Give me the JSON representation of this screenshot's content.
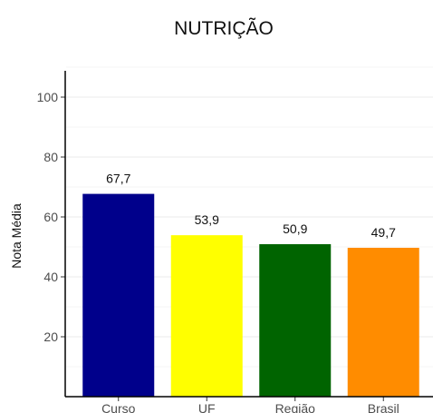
{
  "chart_data": {
    "type": "bar",
    "title": "NUTRIÇÃO",
    "xlabel": "",
    "ylabel": "Nota Média",
    "categories": [
      "Curso",
      "UF",
      "Região",
      "Brasil"
    ],
    "values": [
      67.7,
      53.9,
      50.9,
      49.7
    ],
    "value_labels": [
      "67,7",
      "53,9",
      "50,9",
      "49,7"
    ],
    "colors": [
      "#00008b",
      "#ffff00",
      "#006400",
      "#ff8c00"
    ],
    "yticks": [
      "20",
      "40",
      "60",
      "80",
      "100"
    ],
    "ytick_values": [
      20,
      40,
      60,
      80,
      100
    ],
    "ylim": [
      0,
      110
    ],
    "grid": true,
    "legend": "none"
  }
}
